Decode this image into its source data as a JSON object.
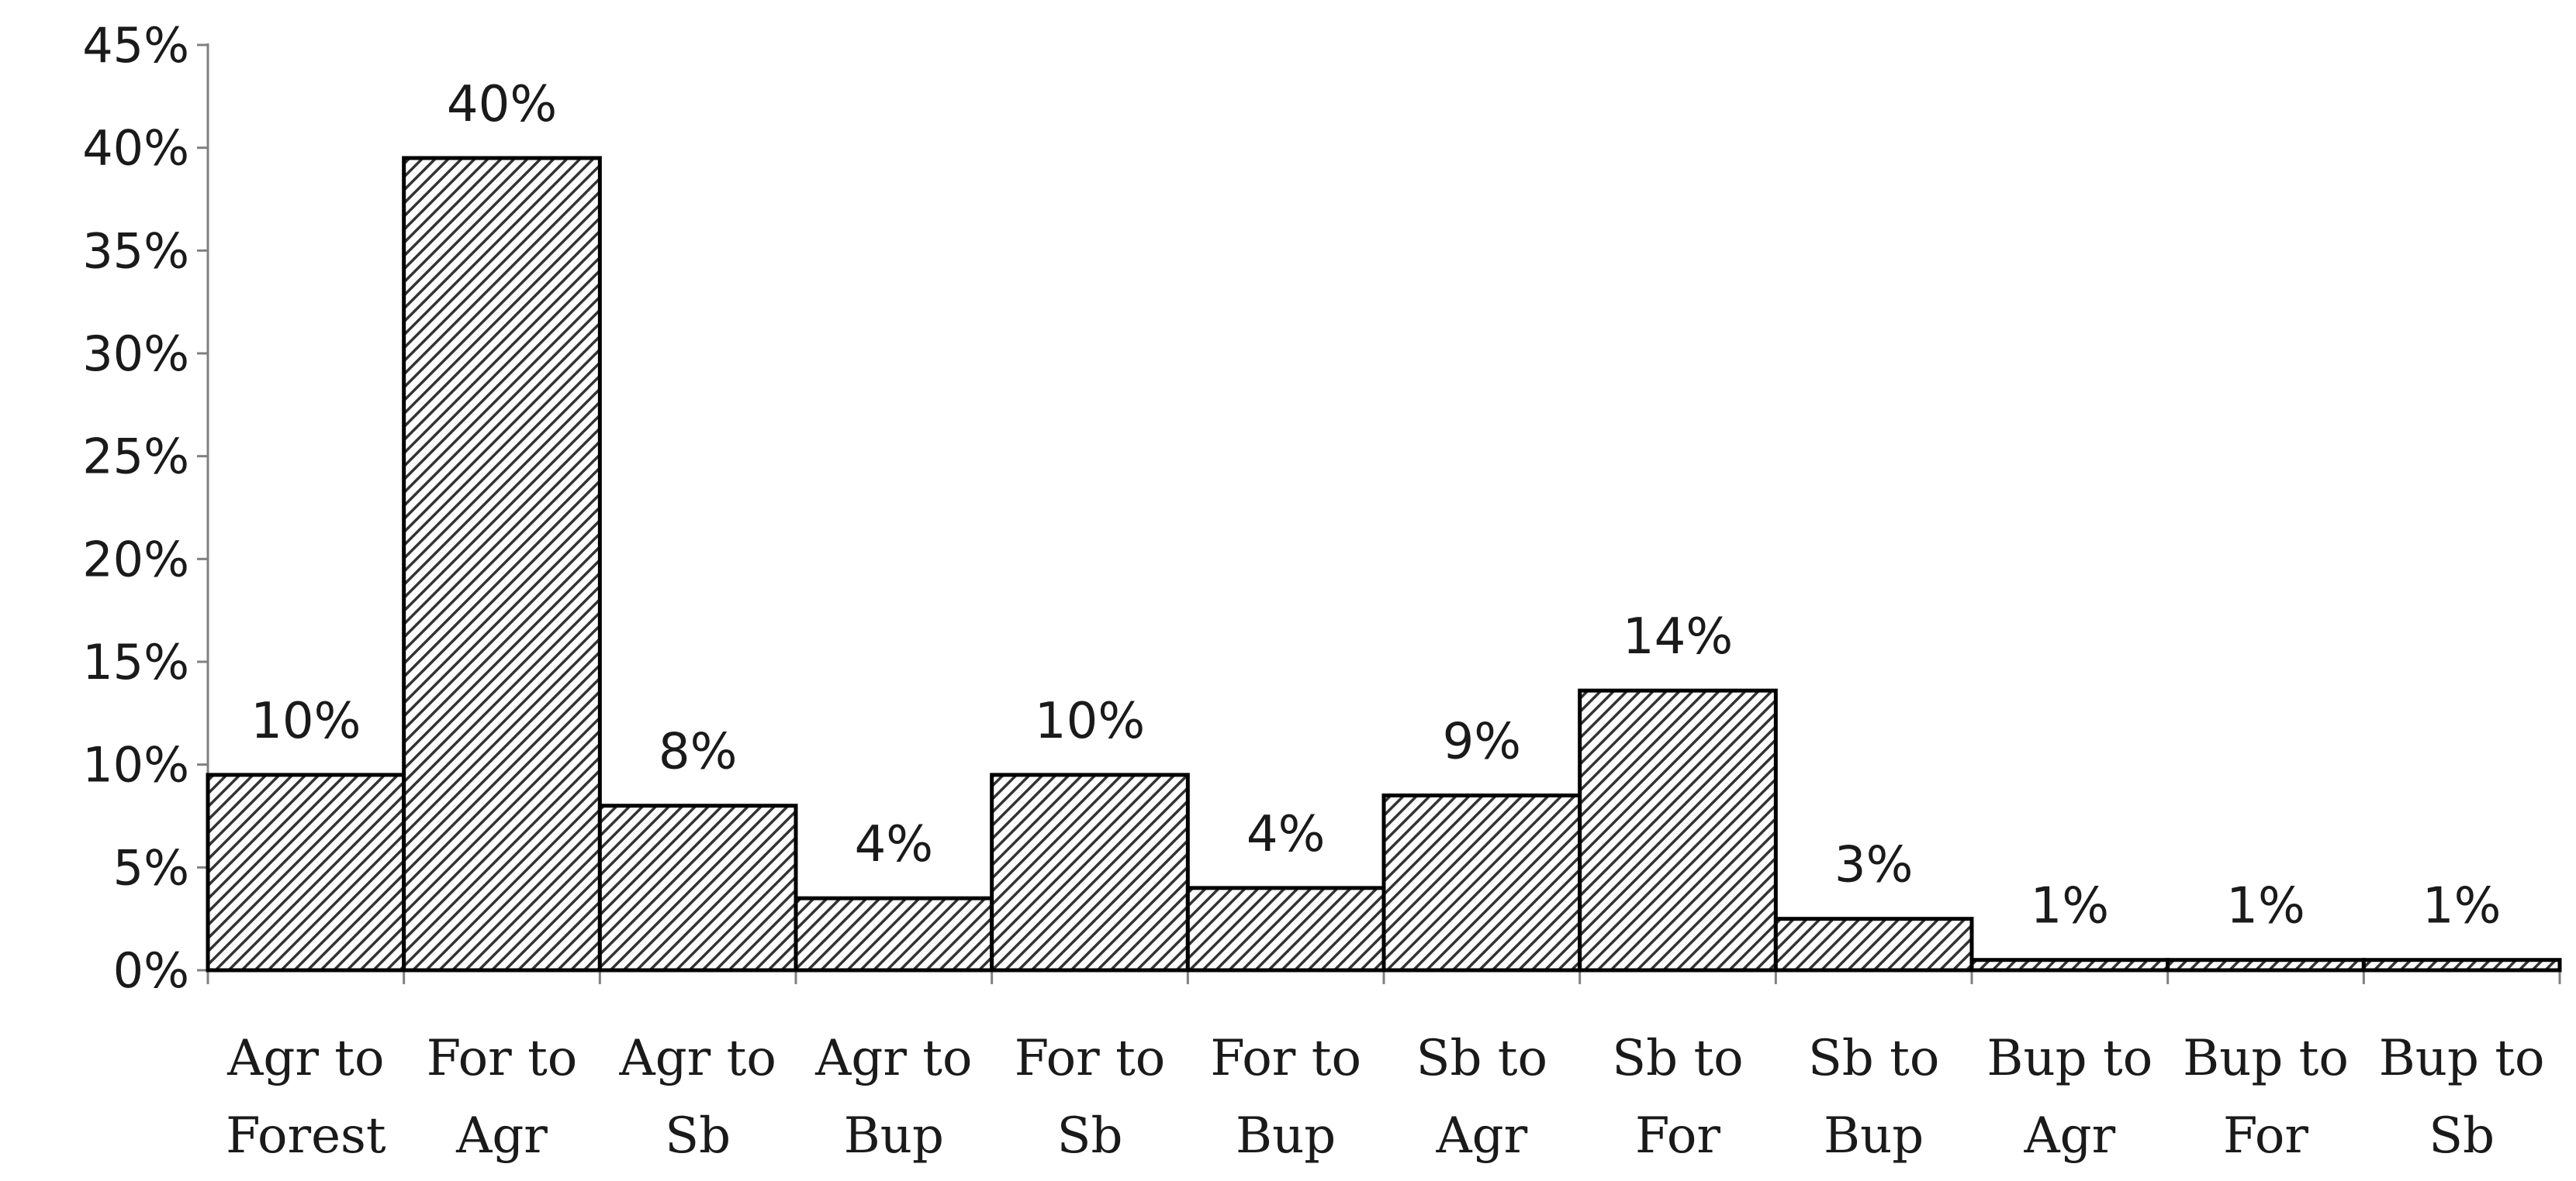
{
  "chart_data": {
    "type": "bar",
    "title": "",
    "xlabel": "",
    "ylabel": "",
    "ylim": [
      0,
      45
    ],
    "yticks": [
      "0%",
      "5%",
      "10%",
      "15%",
      "20%",
      "25%",
      "30%",
      "35%",
      "40%",
      "45%"
    ],
    "grid": false,
    "legend": "none",
    "bar_fill": "diagonal-hatch",
    "colors": {
      "bar_stroke": "#000000",
      "hatch": "#333333",
      "axis": "#808080",
      "text": "#1a1a1a"
    },
    "categories": [
      [
        "Agr to",
        "Forest"
      ],
      [
        "For to",
        "Agr"
      ],
      [
        "Agr to",
        "Sb"
      ],
      [
        "Agr to",
        "Bup"
      ],
      [
        "For to",
        "Sb"
      ],
      [
        "For to",
        "Bup"
      ],
      [
        "Sb to",
        "Agr"
      ],
      [
        "Sb to",
        "For"
      ],
      [
        "Sb to",
        "Bup"
      ],
      [
        "Bup to",
        "Agr"
      ],
      [
        "Bup to",
        "For"
      ],
      [
        "Bup to",
        "Sb"
      ]
    ],
    "values": [
      9.5,
      39.5,
      8.0,
      3.5,
      9.5,
      4.0,
      8.5,
      13.6,
      2.5,
      0.5,
      0.5,
      0.5
    ],
    "data_labels": [
      "10%",
      "40%",
      "8%",
      "4%",
      "10%",
      "4%",
      "9%",
      "14%",
      "3%",
      "1%",
      "1%",
      "1%"
    ]
  }
}
